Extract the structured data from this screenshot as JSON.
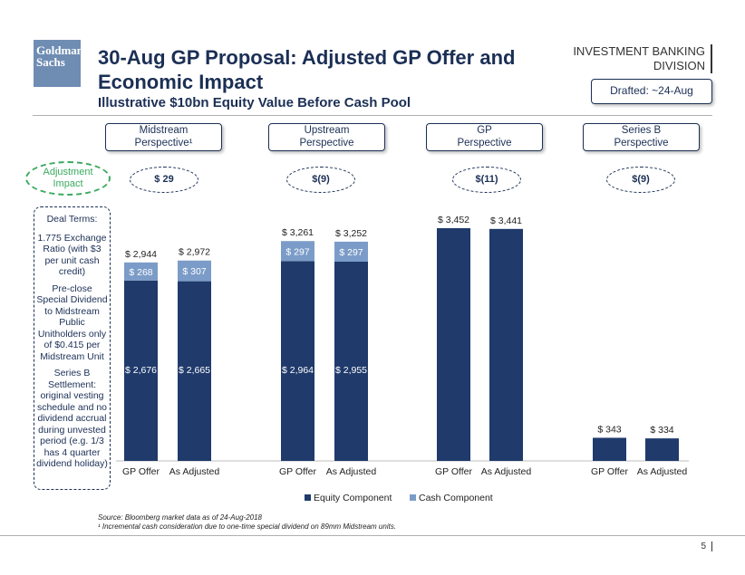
{
  "header": {
    "logo_line1": "Goldman",
    "logo_line2": "Sachs",
    "title": "30-Aug GP Proposal: Adjusted GP Offer and Economic Impact",
    "subtitle": "Illustrative $10bn Equity Value Before Cash Pool",
    "division_line1": "INVESTMENT BANKING",
    "division_line2": "DIVISION",
    "drafted": "Drafted: ~24-Aug"
  },
  "perspectives": [
    {
      "line1": "Midstream",
      "line2": "Perspective¹"
    },
    {
      "line1": "Upstream",
      "line2": "Perspective"
    },
    {
      "line1": "GP",
      "line2": "Perspective"
    },
    {
      "line1": "Series B",
      "line2": "Perspective"
    }
  ],
  "adjustment": {
    "label_line1": "Adjustment",
    "label_line2": "Impact",
    "values": [
      "$ 29",
      "$(9)",
      "$(11)",
      "$(9)"
    ]
  },
  "deal_terms": {
    "heading": "Deal Terms:",
    "items": [
      "1.775 Exchange Ratio (with $3 per unit cash credit)",
      "Pre-close Special Dividend to Midstream Public Unitholders only of $0.415 per Midstream Unit",
      "Series B Settlement: original vesting schedule and no dividend accrual during unvested period (e.g. 1/3 has 4 quarter dividend holiday)"
    ]
  },
  "chart_data": {
    "type": "bar",
    "stacked": true,
    "categories": [
      "GP Offer",
      "As Adjusted",
      "GP Offer",
      "As Adjusted",
      "GP Offer",
      "As Adjusted",
      "GP Offer",
      "As Adjusted"
    ],
    "series": [
      {
        "name": "Equity Component",
        "color": "#1f3a6b",
        "values": [
          2676,
          2665,
          2964,
          2955,
          3452,
          3441,
          343,
          334
        ],
        "labels": [
          "$ 2,676",
          "$ 2,665",
          "$ 2,964",
          "$ 2,955",
          "",
          "",
          "",
          ""
        ]
      },
      {
        "name": "Cash Component",
        "color": "#7b9cc8",
        "values": [
          268,
          307,
          297,
          297,
          0,
          0,
          0,
          0
        ],
        "labels": [
          "$ 268",
          "$ 307",
          "$ 297",
          "$ 297",
          "",
          "",
          "",
          ""
        ]
      }
    ],
    "totals": [
      "$ 2,944",
      "$ 2,972",
      "$ 3,261",
      "$ 3,252",
      "$ 3,452",
      "$ 3,441",
      "$ 343",
      "$ 334"
    ],
    "legend_position": "bottom",
    "grid": false
  },
  "footer": {
    "source": "Source: Bloomberg market data as of 24-Aug-2018",
    "footnote": "¹ Incremental cash consideration due to one-time special dividend on 89mm Midstream units.",
    "page_number": "5"
  }
}
